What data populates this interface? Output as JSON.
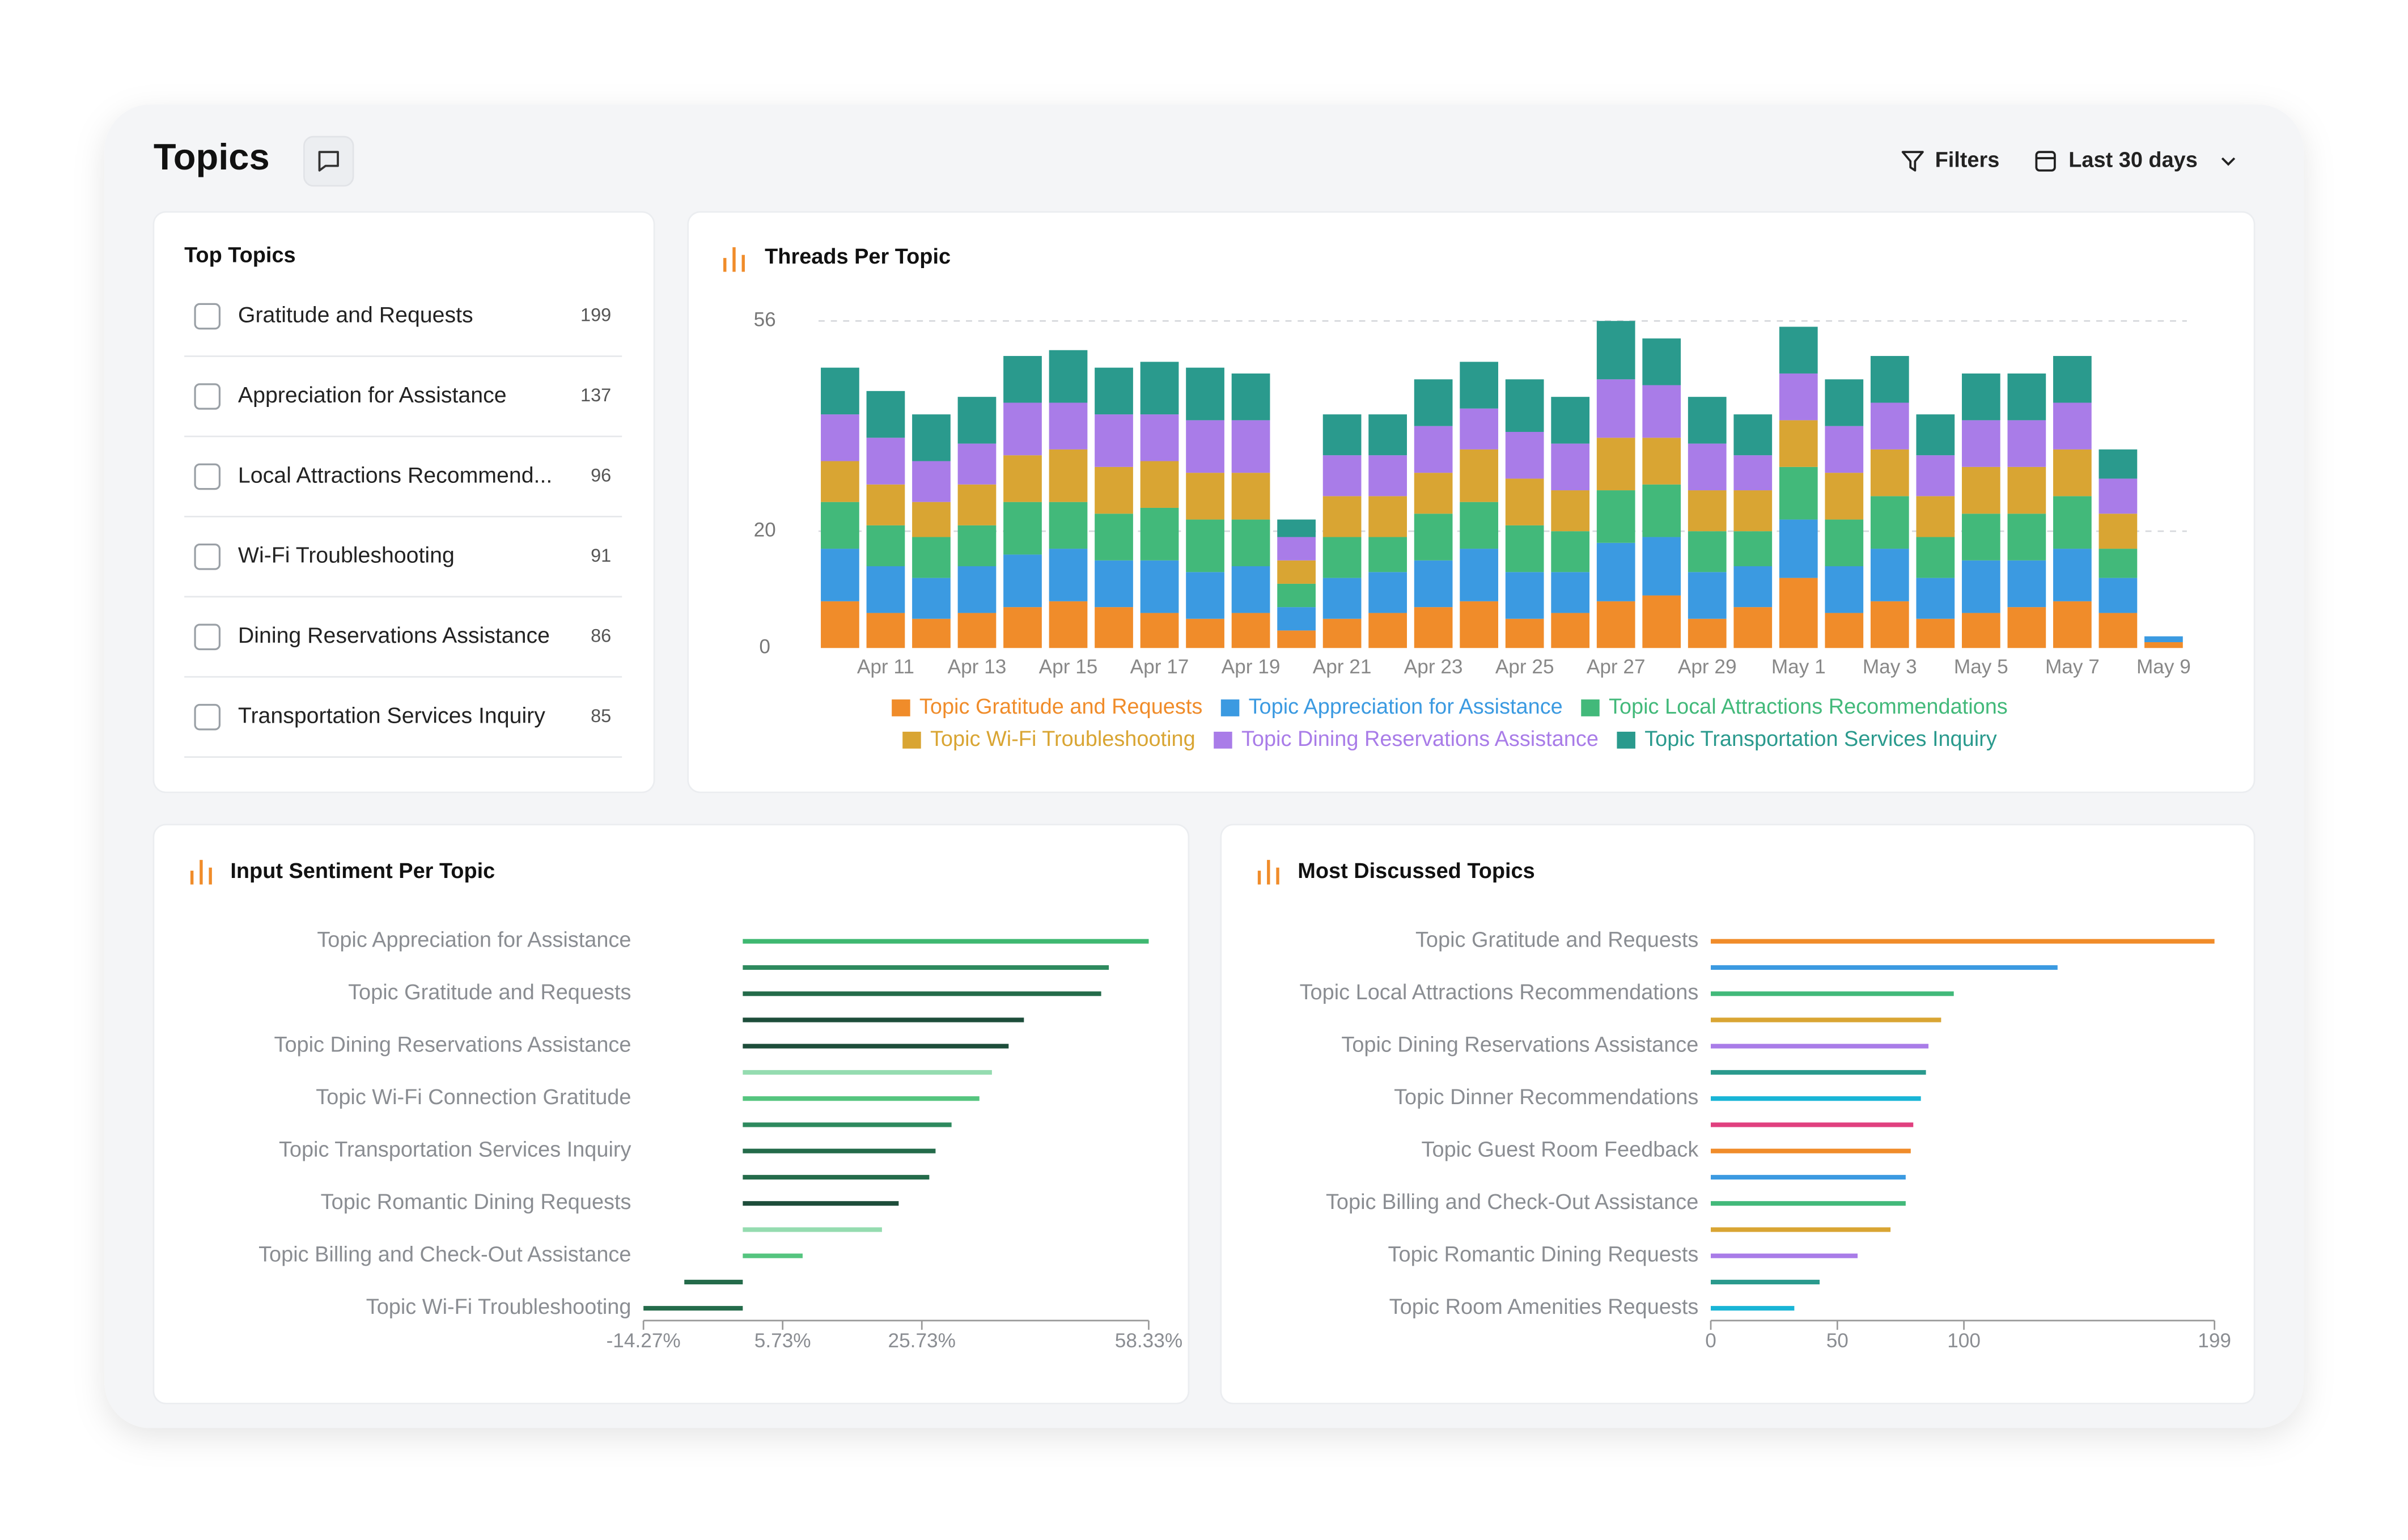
{
  "header": {
    "title": "Topics",
    "filters": "Filters",
    "date_range": "Last 30 days"
  },
  "top_topics": {
    "title": "Top Topics",
    "items": [
      {
        "label": "Gratitude and Requests",
        "count": 199
      },
      {
        "label": "Appreciation for Assistance",
        "count": 137
      },
      {
        "label": "Local Attractions Recommend...",
        "count": 96
      },
      {
        "label": "Wi-Fi Troubleshooting",
        "count": 91
      },
      {
        "label": "Dining Reservations Assistance",
        "count": 86
      },
      {
        "label": "Transportation Services Inquiry",
        "count": 85
      }
    ]
  },
  "chart_data": [
    {
      "type": "bar",
      "stacked": true,
      "title": "Threads Per Topic",
      "grid": true,
      "categories": [
        null,
        "Apr 11",
        null,
        "Apr 13",
        null,
        "Apr 15",
        null,
        "Apr 17",
        null,
        "Apr 19",
        null,
        "Apr 21",
        null,
        "Apr 23",
        null,
        "Apr 25",
        null,
        "Apr 27",
        null,
        "Apr 29",
        null,
        "May 1",
        null,
        "May 3",
        null,
        "May 5",
        null,
        "May 7",
        null,
        "May 9"
      ],
      "ylim": [
        0,
        56
      ],
      "yticks": [
        0,
        20,
        56
      ],
      "series": [
        {
          "name": "Topic Gratitude and Requests",
          "color": "#f08c2a",
          "values": [
            8,
            6,
            5,
            6,
            7,
            8,
            7,
            6,
            5,
            6,
            3,
            5,
            6,
            7,
            8,
            5,
            6,
            8,
            9,
            5,
            7,
            12,
            6,
            8,
            5,
            6,
            7,
            8,
            6,
            1
          ]
        },
        {
          "name": "Topic Appreciation for Assistance",
          "color": "#3b9ae1",
          "values": [
            9,
            8,
            7,
            8,
            9,
            9,
            8,
            9,
            8,
            8,
            4,
            7,
            7,
            8,
            9,
            8,
            7,
            10,
            10,
            8,
            7,
            10,
            8,
            9,
            7,
            9,
            8,
            9,
            6,
            1
          ]
        },
        {
          "name": "Topic Local Attractions Recommendations",
          "color": "#42b97a",
          "values": [
            8,
            7,
            7,
            7,
            9,
            8,
            8,
            9,
            9,
            8,
            4,
            7,
            6,
            8,
            8,
            8,
            7,
            9,
            9,
            7,
            6,
            9,
            8,
            9,
            7,
            8,
            8,
            9,
            5,
            0
          ]
        },
        {
          "name": "Topic Wi-Fi Troubleshooting",
          "color": "#d9a533",
          "values": [
            7,
            7,
            6,
            7,
            8,
            9,
            8,
            8,
            8,
            8,
            4,
            7,
            7,
            7,
            9,
            8,
            7,
            9,
            8,
            7,
            7,
            8,
            8,
            8,
            7,
            8,
            8,
            8,
            6,
            0
          ]
        },
        {
          "name": "Topic Dining Reservations Assistance",
          "color": "#a97ce8",
          "values": [
            8,
            8,
            7,
            7,
            9,
            8,
            9,
            8,
            9,
            9,
            4,
            7,
            7,
            8,
            7,
            8,
            8,
            10,
            9,
            8,
            6,
            8,
            8,
            8,
            7,
            8,
            8,
            8,
            6,
            0
          ]
        },
        {
          "name": "Topic Transportation Services Inquiry",
          "color": "#2a9a8d",
          "values": [
            8,
            8,
            8,
            8,
            8,
            9,
            8,
            9,
            9,
            8,
            3,
            7,
            7,
            8,
            8,
            9,
            8,
            10,
            8,
            8,
            7,
            8,
            8,
            8,
            7,
            8,
            8,
            8,
            5,
            0
          ]
        }
      ]
    },
    {
      "type": "hbar",
      "title": "Input Sentiment Per Topic",
      "categories": [
        "Topic Appreciation for Assistance",
        null,
        "Topic Gratitude and Requests",
        null,
        "Topic Dining Reservations Assistance",
        null,
        "Topic Wi-Fi Connection Gratitude",
        null,
        "Topic Transportation Services Inquiry",
        null,
        "Topic Romantic Dining Requests",
        null,
        "Topic Billing and Check-Out Assistance",
        null,
        "Topic Wi-Fi Troubleshooting"
      ],
      "values": [
        58.33,
        52.6,
        51.5,
        40.4,
        38.2,
        35.8,
        34,
        30,
        27.7,
        26.8,
        22.4,
        20,
        8.6,
        -8.4,
        -14.27
      ],
      "colors": [
        "#3fb871",
        "#2e8a5e",
        "#246b4a",
        "#1d4d3a",
        "#1d4d3a",
        "#95dcb0",
        "#55c57f",
        "#2e8a5e",
        "#246b4a",
        "#246b4a",
        "#1d4d3a",
        "#95dcb0",
        "#55c57f",
        "#246b4a",
        "#246b4a"
      ],
      "xlim": [
        -14.27,
        58.33
      ],
      "xticks": [
        {
          "value": -14.27,
          "label": "-14.27%"
        },
        {
          "value": 5.73,
          "label": "5.73%"
        },
        {
          "value": 25.73,
          "label": "25.73%"
        },
        {
          "value": 58.33,
          "label": "58.33%"
        }
      ]
    },
    {
      "type": "hbar",
      "title": "Most Discussed Topics",
      "categories": [
        "Topic Gratitude and Requests",
        null,
        "Topic Local Attractions Recommendations",
        null,
        "Topic Dining Reservations Assistance",
        null,
        "Topic Dinner Recommendations",
        null,
        "Topic Guest Room Feedback",
        null,
        "Topic Billing and Check-Out Assistance",
        null,
        "Topic Romantic Dining Requests",
        null,
        "Topic Room Amenities Requests"
      ],
      "values": [
        199,
        137,
        96,
        91,
        86,
        85,
        83,
        80,
        79,
        77,
        77,
        71,
        58,
        43,
        33
      ],
      "colors": [
        "#f08c2a",
        "#3b9ae1",
        "#42b97a",
        "#d9a533",
        "#a97ce8",
        "#2a9a8d",
        "#19b5d6",
        "#e0407f",
        "#f08c2a",
        "#3b9ae1",
        "#42b97a",
        "#d9a533",
        "#a97ce8",
        "#2a9a8d",
        "#19b5d6"
      ],
      "xlim": [
        0,
        199
      ],
      "xticks": [
        0,
        50,
        100,
        199
      ]
    }
  ]
}
